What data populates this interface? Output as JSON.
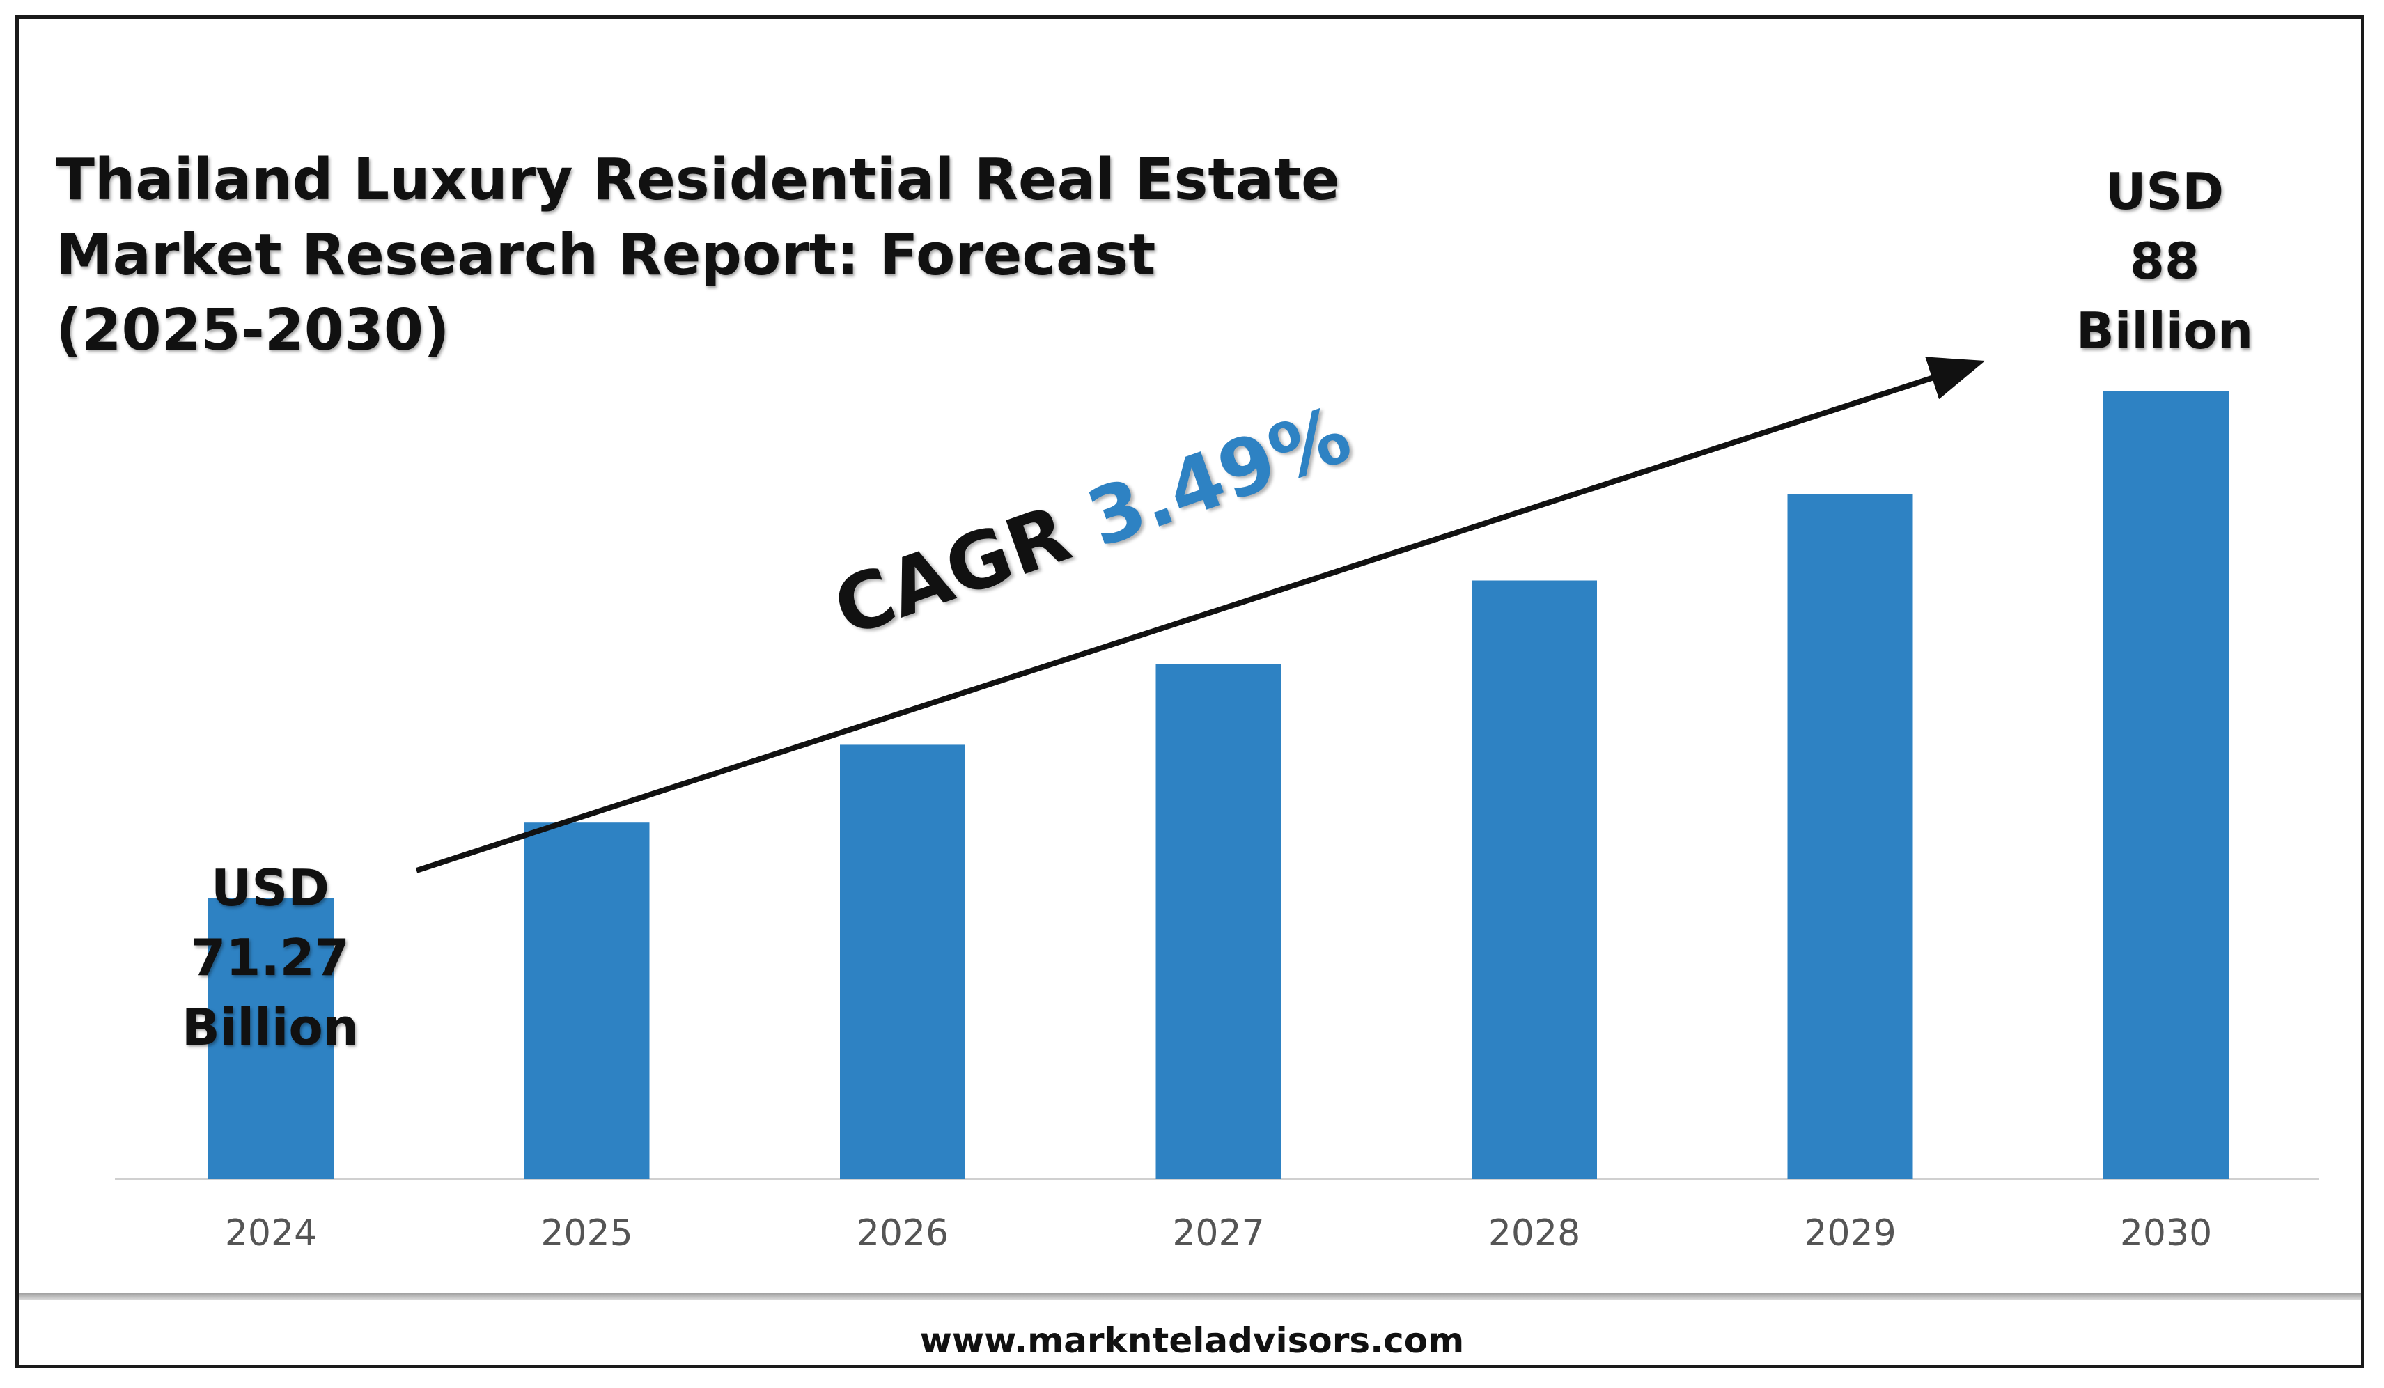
{
  "chart_data": {
    "type": "bar",
    "title": "Thailand Luxury Residential Real Estate Market Research Report: Forecast (2025-2030)",
    "title_lines": [
      "Thailand Luxury Residential Real Estate",
      "Market Research Report: Forecast",
      "(2025-2030)"
    ],
    "categories": [
      "2024",
      "2025",
      "2026",
      "2027",
      "2028",
      "2029",
      "2030"
    ],
    "values": [
      71.27,
      73.76,
      76.33,
      78.99,
      81.75,
      84.6,
      88
    ],
    "ylim": [
      62,
      89
    ],
    "xlabel": "",
    "ylabel": "",
    "grid": false,
    "bar_color": "#2e82c3",
    "annotations": {
      "start": [
        "USD",
        "71.27",
        "Billion"
      ],
      "end": [
        "USD",
        "88",
        "Billion"
      ],
      "cagr_label": "CAGR",
      "cagr_value": "3.49%"
    }
  },
  "footer": {
    "website": "www.marknteladvisors.com"
  },
  "colors": {
    "bar": "#2e82c3",
    "cagr_value": "#2e82c3",
    "text": "#111111",
    "axis_tick_text": "#555555"
  }
}
